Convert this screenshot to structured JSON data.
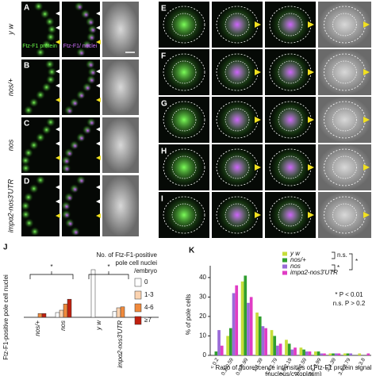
{
  "figure": {
    "panel_letters": [
      "A",
      "B",
      "C",
      "D",
      "E",
      "F",
      "G",
      "H",
      "I",
      "J",
      "K"
    ],
    "genotypes": [
      "y w",
      "nos/+",
      "nos",
      "impα2-nos3'UTR"
    ],
    "channel_labels": [
      "Ftz-F1 protein",
      "Ftz-F1/ nuclei"
    ]
  },
  "chart_data": [
    {
      "type": "bar",
      "y_label": "Ftz-F1-positive pole cell nuclei",
      "legend_title": [
        "No. of Ftz-F1-positive",
        "pole cell nuclei",
        "/embryo"
      ],
      "categories": [
        "nos/+",
        "nos",
        "y w",
        "impα2-nos3'UTR"
      ],
      "series": [
        {
          "name": "0",
          "color": "#ffffff",
          "values": [
            0,
            10,
            100,
            12
          ]
        },
        {
          "name": "1-3",
          "color": "#fbd3b0",
          "values": [
            0,
            15,
            0,
            20
          ]
        },
        {
          "name": "4-6",
          "color": "#f08a3c",
          "values": [
            8,
            28,
            0,
            22
          ]
        },
        {
          "name": "≥7",
          "color": "#c0200f",
          "values": [
            8,
            38,
            0,
            0
          ]
        }
      ],
      "ylim": [
        0,
        100
      ],
      "annotations": [
        "*",
        "*"
      ]
    },
    {
      "type": "bar",
      "y_label": "% of pole cells",
      "x_label": [
        "Ratio of fluorescence intensities of Ftz-F1 protein signal",
        "(nucleus/cytoplasm)"
      ],
      "categories": [
        "< 0.2",
        "0.2-0.59",
        "0.6-0.99",
        "1-1.39",
        "1.4-1.79",
        "1.8-2.19",
        "2.2-2.59",
        "2.6-2.99",
        "3-3.39",
        "3.4-3.79",
        "> 3.8"
      ],
      "series": [
        {
          "name": "y w",
          "color": "#c6de3a",
          "values": [
            0,
            10,
            38,
            22,
            13,
            8,
            4,
            2,
            1,
            1,
            1
          ]
        },
        {
          "name": "nos/+",
          "color": "#2f9e2f",
          "values": [
            2,
            14,
            41,
            20,
            10,
            6,
            3,
            2,
            1,
            1,
            0
          ]
        },
        {
          "name": "nos",
          "color": "#9a6ad8",
          "values": [
            13,
            32,
            27,
            15,
            5,
            3,
            2,
            1,
            1,
            1,
            0
          ]
        },
        {
          "name": "impα2-nos3'UTR",
          "color": "#e03cc4",
          "values": [
            5,
            36,
            30,
            14,
            6,
            4,
            2,
            1,
            1,
            0,
            1
          ]
        }
      ],
      "ylim": [
        0,
        42
      ],
      "yticks": [
        0,
        10,
        20,
        30,
        40
      ],
      "annotations": [
        "n.s.",
        "*",
        "*",
        "* P < 0.01",
        "n.s. P > 0.2"
      ]
    }
  ]
}
